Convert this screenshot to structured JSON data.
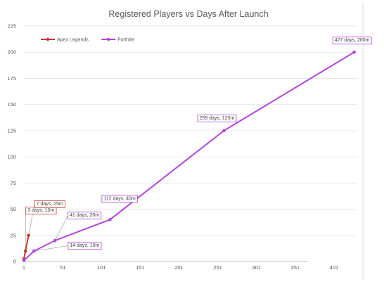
{
  "chart_data": {
    "type": "line",
    "title": "Registered Players vs Days After Launch",
    "xlabel": "",
    "ylabel": "",
    "xlim": [
      1,
      431
    ],
    "ylim": [
      0,
      225
    ],
    "x_ticks": [
      "1",
      "51",
      "101",
      "151",
      "201",
      "251",
      "301",
      "351",
      "401"
    ],
    "y_ticks": [
      "0",
      "25",
      "50",
      "75",
      "100",
      "125",
      "150",
      "175",
      "200",
      "225"
    ],
    "grid": true,
    "legend": "top-left",
    "series": [
      {
        "name": "Apex Legends",
        "color": "#c0392b",
        "x": [
          1,
          3,
          7
        ],
        "y": [
          2.5,
          10,
          25
        ],
        "annotations": [
          {
            "index": 1,
            "label": "3 days, 10m"
          },
          {
            "index": 2,
            "label": "7 days, 25m"
          }
        ]
      },
      {
        "name": "Fortnite",
        "color": "#b445d8",
        "x": [
          1,
          14,
          41,
          112,
          259,
          427
        ],
        "y": [
          1,
          10,
          20,
          40,
          125,
          200
        ],
        "annotations": [
          {
            "index": 1,
            "label": "14 days, 10m"
          },
          {
            "index": 2,
            "label": "41 days, 20m"
          },
          {
            "index": 3,
            "label": "112 days, 40m"
          },
          {
            "index": 4,
            "label": "259 days, 125m"
          },
          {
            "index": 5,
            "label": "427 days, 200m"
          }
        ]
      }
    ]
  }
}
